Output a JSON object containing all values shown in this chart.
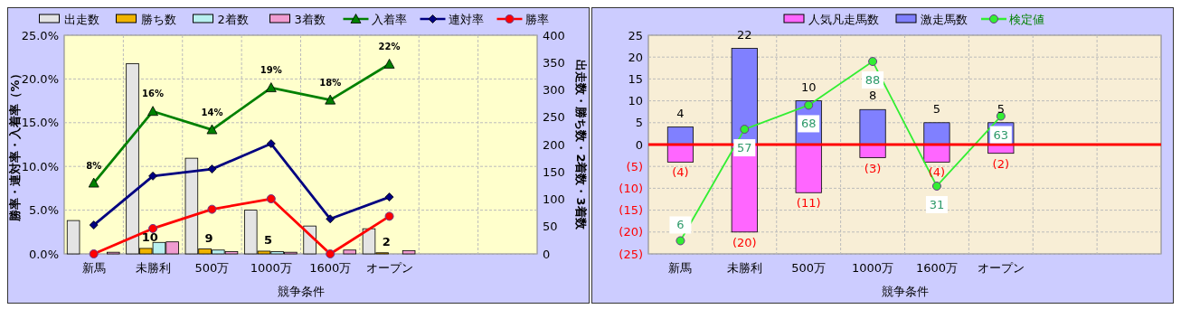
{
  "chart_data": [
    {
      "type": "bar",
      "xlabel": "競争条件",
      "ylabel": "勝率・連対率・入着率（%）",
      "y2label": "出走数・勝ち数・2着数・3着数",
      "categories": [
        "新馬",
        "未勝利",
        "500万",
        "1000万",
        "1600万",
        "オープン",
        null,
        null
      ],
      "series": [
        {
          "name": "出走数",
          "axis": "y2",
          "color": "#e4e4e4",
          "values": [
            61,
            348,
            175,
            80,
            51,
            46,
            null,
            null
          ]
        },
        {
          "name": "勝ち数",
          "axis": "y2",
          "color": "#f0b400",
          "values": [
            0,
            10,
            9,
            5,
            0,
            2,
            null,
            null
          ],
          "value_labels": [
            null,
            "10",
            "9",
            "5",
            null,
            "2",
            null,
            null
          ]
        },
        {
          "name": "2着数",
          "axis": "y2",
          "color": "#b8f0f0",
          "values": [
            null,
            21,
            7,
            4,
            null,
            null,
            null,
            null
          ]
        },
        {
          "name": "3着数",
          "axis": "y2",
          "color": "#f09cd0",
          "values": [
            3,
            22,
            4,
            3,
            7,
            6,
            null,
            null
          ]
        },
        {
          "name": "入着率",
          "type": "line",
          "marker": "triangle",
          "color": "#008000",
          "values": [
            8.1,
            16.3,
            14.2,
            19.0,
            17.6,
            21.7,
            null,
            null
          ],
          "value_labels": [
            "8%",
            "16%",
            "14%",
            "19%",
            "18%",
            "22%",
            null,
            null
          ]
        },
        {
          "name": "連対率",
          "type": "line",
          "marker": "diamond",
          "color": "#000080",
          "values": [
            3.3,
            8.9,
            9.7,
            12.6,
            4.0,
            6.5,
            null,
            null
          ]
        },
        {
          "name": "勝率",
          "type": "line",
          "marker": "circle",
          "color": "#ff0000",
          "values": [
            0,
            2.9,
            5.1,
            6.3,
            0,
            4.3,
            null,
            null
          ]
        }
      ],
      "ylim": [
        0,
        25
      ],
      "yticks": [
        {
          "value": 0,
          "label": "0.0%"
        },
        {
          "value": 5,
          "label": "5.0%"
        },
        {
          "value": 10,
          "label": "10.0%"
        },
        {
          "value": 15,
          "label": "15.0%"
        },
        {
          "value": 20,
          "label": "20.0%"
        },
        {
          "value": 25,
          "label": "25.0%"
        }
      ],
      "y2lim": [
        0,
        400
      ],
      "y2ticks": [
        0,
        50,
        100,
        150,
        200,
        250,
        300,
        350,
        400
      ],
      "grid": true,
      "legend": "top"
    },
    {
      "type": "bar",
      "stacked": true,
      "xlabel": "競争条件",
      "categories": [
        "新馬",
        "未勝利",
        "500万",
        "1000万",
        "1600万",
        "オープン",
        null,
        null
      ],
      "series": [
        {
          "name": "人気凡走馬数",
          "color": "#ff66ff",
          "values": [
            -4,
            -20,
            -11,
            -3,
            -4,
            -2,
            null,
            null
          ],
          "value_labels": [
            "(4)",
            "(20)",
            "(11)",
            "(3)",
            "(4)",
            "(2)",
            null,
            null
          ]
        },
        {
          "name": "激走馬数",
          "color": "#8080ff",
          "values": [
            4,
            22,
            10,
            8,
            5,
            5,
            null,
            null
          ],
          "value_labels": [
            "4",
            "22",
            "10",
            "8",
            "5",
            "5",
            null,
            null
          ]
        },
        {
          "name": "検定値",
          "type": "line",
          "axis": "y2",
          "marker": "circle",
          "color": "#33ee33",
          "values": [
            6,
            57,
            68,
            88,
            31,
            63,
            null,
            null
          ],
          "value_labels": [
            "6",
            "57",
            "68",
            "88",
            "31",
            "63",
            null,
            null
          ]
        }
      ],
      "ylim": [
        -25,
        25
      ],
      "yticks": [
        {
          "value": -25,
          "label": "(25)"
        },
        {
          "value": -20,
          "label": "(20)"
        },
        {
          "value": -15,
          "label": "(15)"
        },
        {
          "value": -10,
          "label": "(10)"
        },
        {
          "value": -5,
          "label": "(5)"
        },
        0,
        5,
        10,
        15,
        20,
        25
      ],
      "y2lim": [
        0,
        100
      ],
      "ref_lines": [
        {
          "axis": "y",
          "value": 0,
          "color": "#ff0000"
        }
      ],
      "grid": true,
      "legend": "top"
    }
  ]
}
